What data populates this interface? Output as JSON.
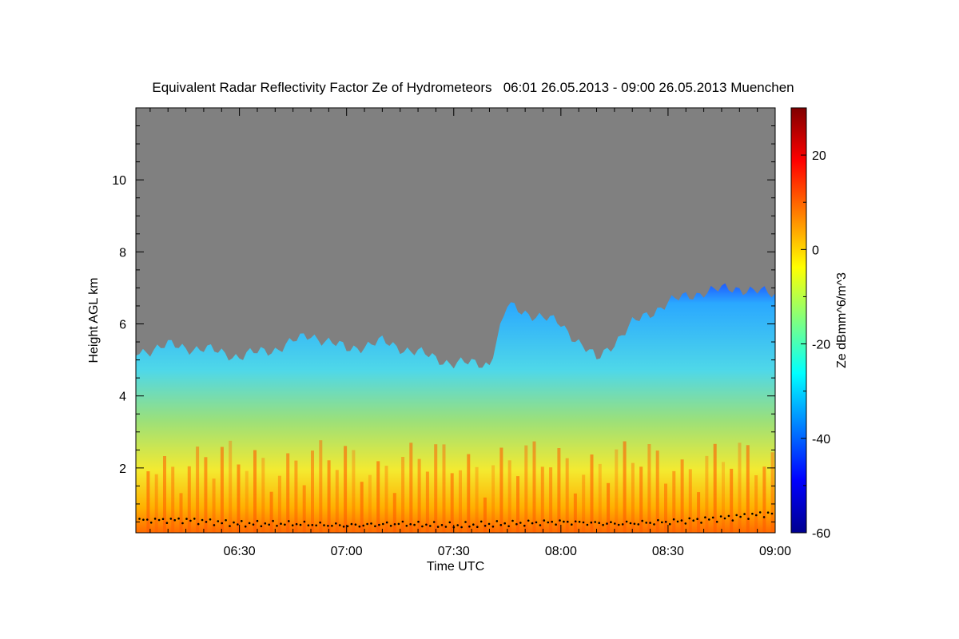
{
  "chart_data": {
    "type": "heatmap",
    "title": "Equivalent Radar Reflectivity Factor Ze of Hydrometeors   06:01 26.05.2013 - 09:00 26.05.2013 Muenchen",
    "xlabel": "Time UTC",
    "ylabel": "Height AGL km",
    "x_ticks": [
      "06:30",
      "07:00",
      "07:30",
      "08:00",
      "08:30",
      "09:00"
    ],
    "y_ticks": [
      2,
      4,
      6,
      8,
      10
    ],
    "xlim": [
      "06:01",
      "09:00"
    ],
    "ylim": [
      0.2,
      12
    ],
    "colorbar": {
      "label": "Ze dBmm^6/m^3",
      "range": [
        -60,
        30
      ],
      "ticks": [
        -60,
        -40,
        -20,
        0,
        20
      ]
    },
    "background_color": "#808080",
    "cloud_top_km": [
      [
        "06:01",
        5.2
      ],
      [
        "06:10",
        5.4
      ],
      [
        "06:20",
        5.3
      ],
      [
        "06:30",
        5.1
      ],
      [
        "06:40",
        5.3
      ],
      [
        "06:50",
        5.7
      ],
      [
        "07:00",
        5.3
      ],
      [
        "07:10",
        5.5
      ],
      [
        "07:20",
        5.2
      ],
      [
        "07:30",
        4.9
      ],
      [
        "07:40",
        4.9
      ],
      [
        "07:45",
        6.5
      ],
      [
        "08:00",
        6.0
      ],
      [
        "08:10",
        5.0
      ],
      [
        "08:20",
        6.0
      ],
      [
        "08:30",
        6.6
      ],
      [
        "08:40",
        6.9
      ],
      [
        "08:50",
        7.0
      ],
      [
        "09:00",
        6.8
      ]
    ],
    "cloud_base_km": [
      [
        "06:01",
        0.55
      ],
      [
        "06:15",
        0.55
      ],
      [
        "06:30",
        0.45
      ],
      [
        "06:45",
        0.45
      ],
      [
        "07:00",
        0.4
      ],
      [
        "07:15",
        0.45
      ],
      [
        "07:30",
        0.4
      ],
      [
        "07:45",
        0.45
      ],
      [
        "08:00",
        0.5
      ],
      [
        "08:15",
        0.45
      ],
      [
        "08:30",
        0.5
      ],
      [
        "08:45",
        0.6
      ],
      [
        "09:00",
        0.75
      ]
    ]
  }
}
